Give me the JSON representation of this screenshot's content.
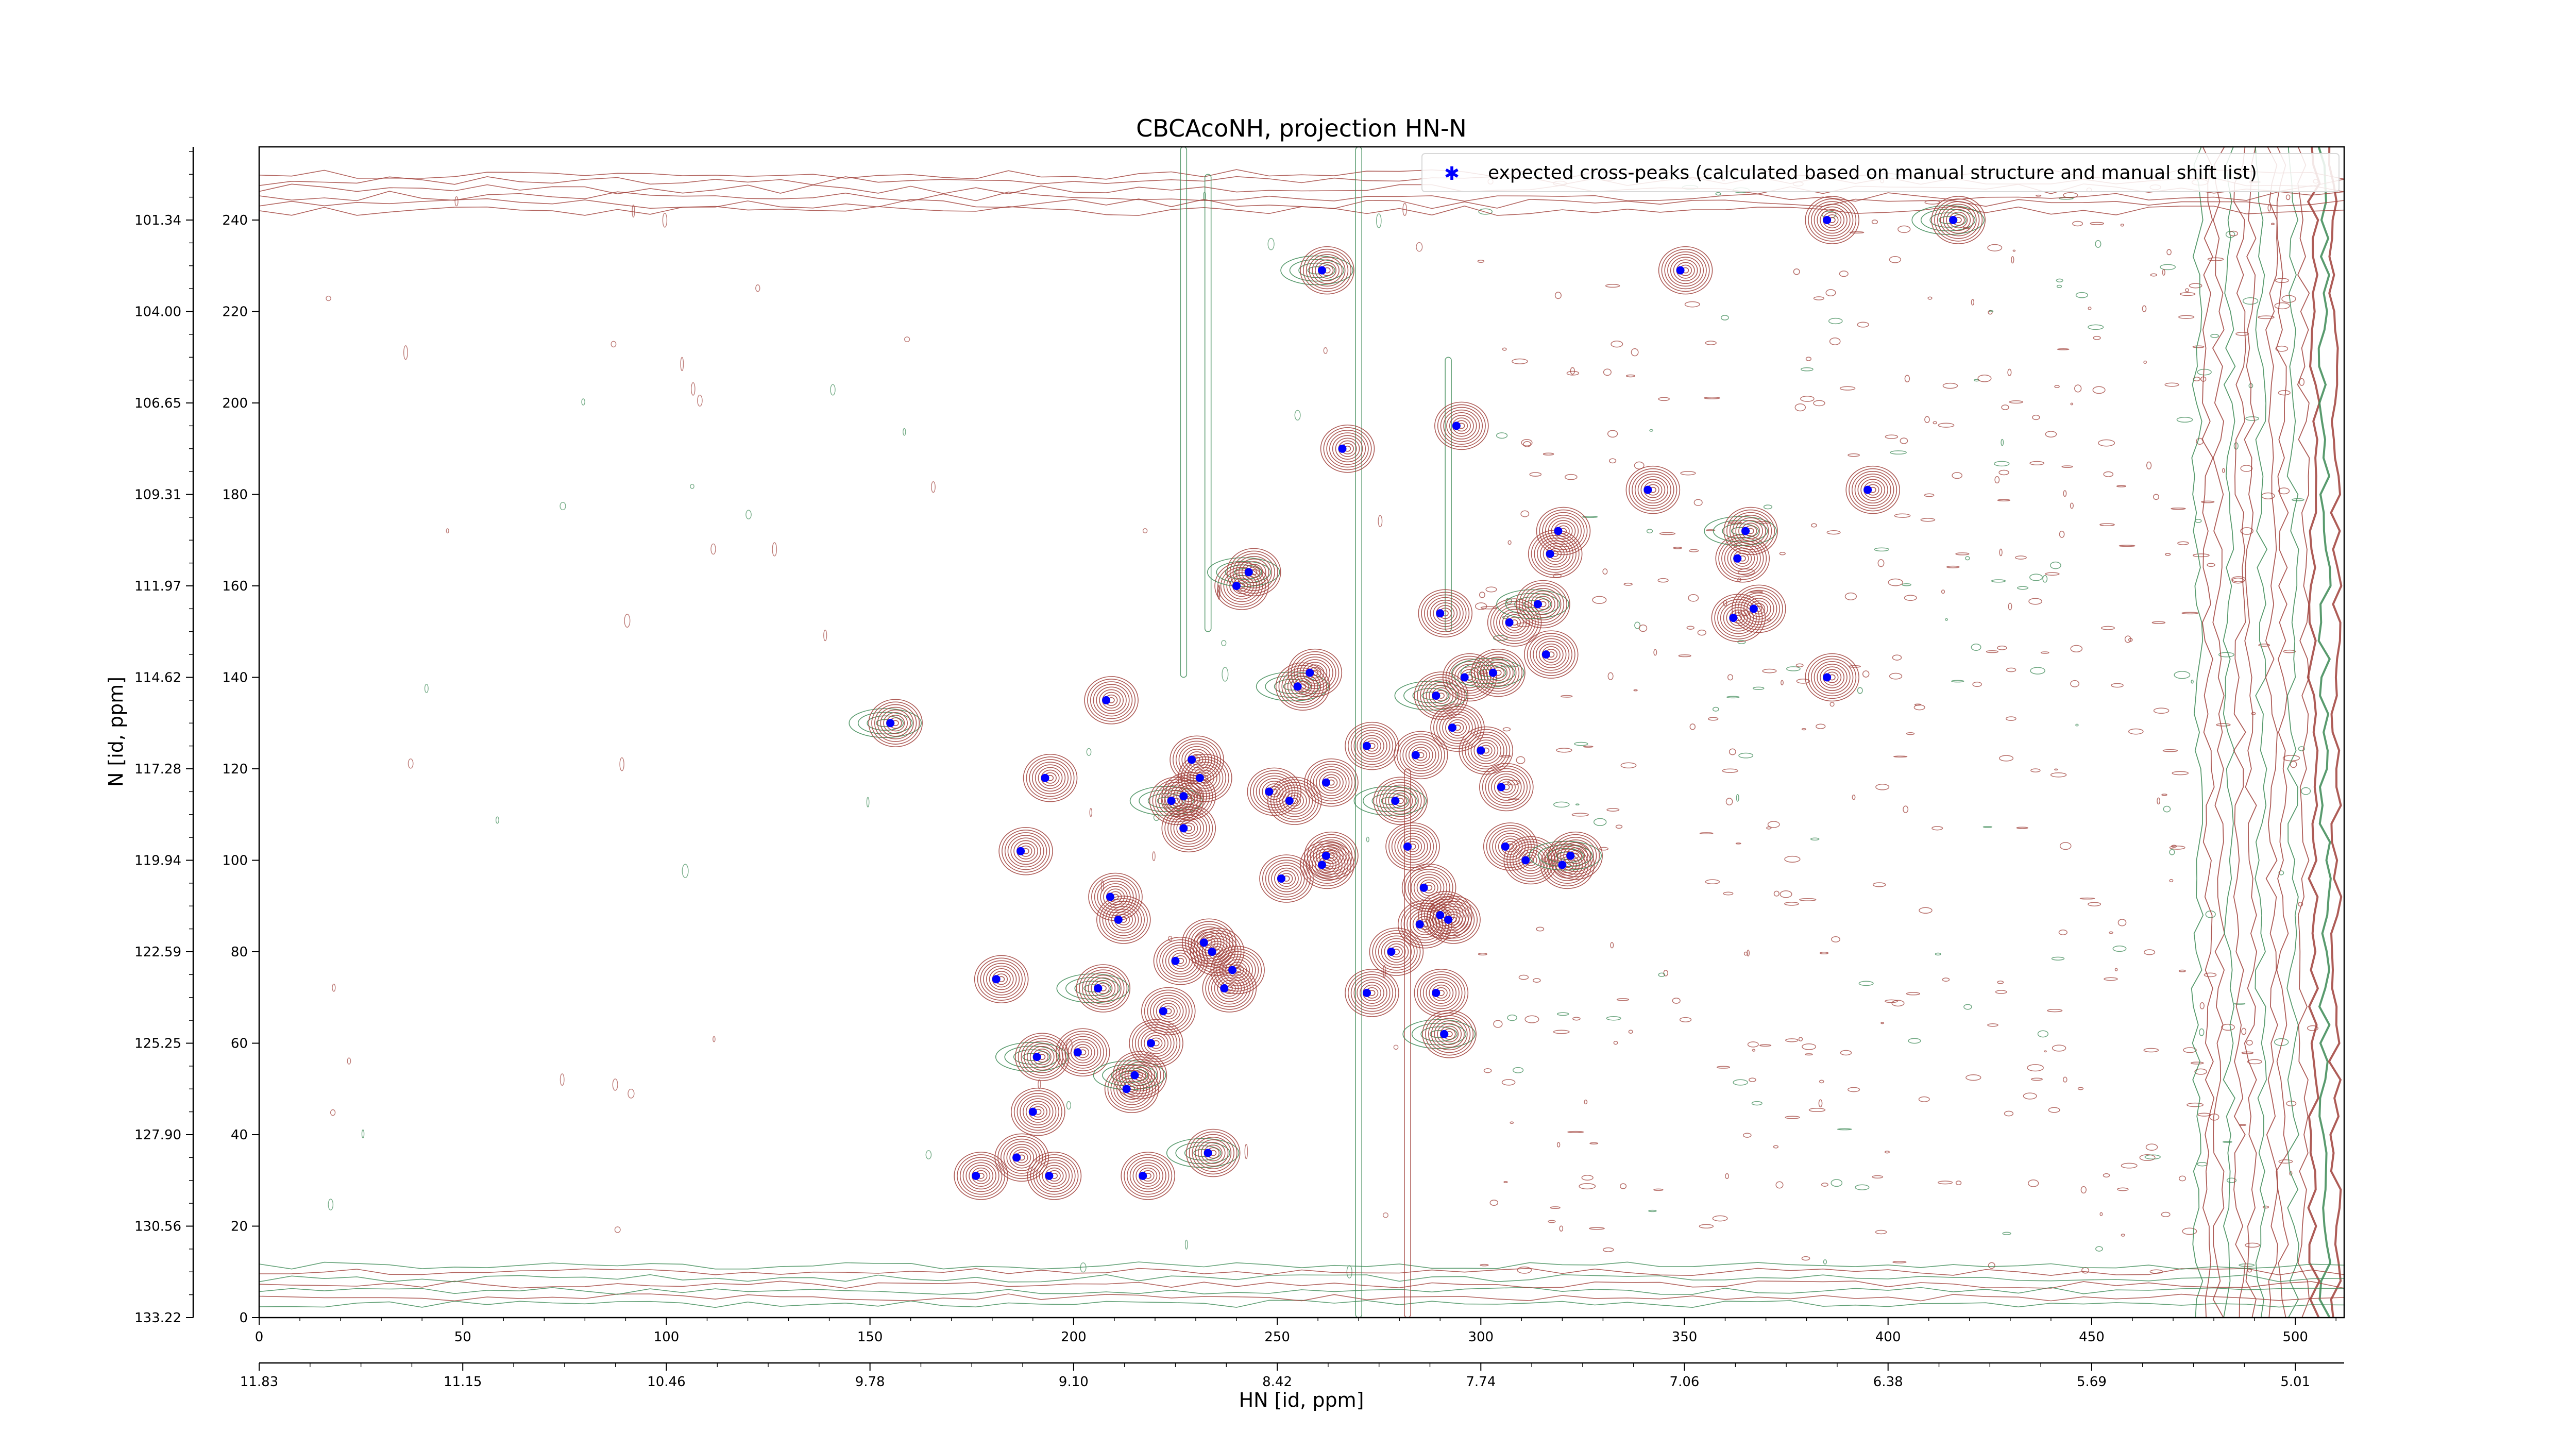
{
  "chart_data": {
    "type": "scatter",
    "title": "CBCAcoNH, projection HN-N",
    "xlabel": "HN [id, ppm]",
    "ylabel": "N [id, ppm]",
    "xlim": [
      0,
      512
    ],
    "ylim": [
      0,
      256
    ],
    "x_ticks": [
      0,
      50,
      100,
      150,
      200,
      250,
      300,
      350,
      400,
      450,
      500
    ],
    "y_ticks": [
      0,
      20,
      40,
      60,
      80,
      100,
      120,
      140,
      160,
      180,
      200,
      220,
      240
    ],
    "x_ppm_ticks": [
      "11.83",
      "11.15",
      "10.46",
      "9.78",
      "9.10",
      "8.42",
      "7.74",
      "7.06",
      "6.38",
      "5.69",
      "5.01"
    ],
    "y_ppm_ticks": [
      "133.22",
      "130.56",
      "127.90",
      "125.25",
      "122.59",
      "119.94",
      "117.28",
      "114.62",
      "111.97",
      "109.31",
      "106.65",
      "104.00",
      "101.34"
    ],
    "legend": {
      "placement": "top-right",
      "entries": [
        "expected cross-peaks (calculated based on manual structure and manual shift list)"
      ]
    },
    "colors": {
      "marker": "#0000ff",
      "positive_contour": "#a0403a",
      "negative_contour": "#3c8a55"
    },
    "series": [
      {
        "name": "expected cross-peaks (calculated based on manual structure and manual shift list)",
        "points": [
          [
            155,
            130
          ],
          [
            176,
            31
          ],
          [
            186,
            35
          ],
          [
            181,
            74
          ],
          [
            190,
            45
          ],
          [
            191,
            57
          ],
          [
            194,
            31
          ],
          [
            193,
            118
          ],
          [
            187,
            102
          ],
          [
            201,
            58
          ],
          [
            206,
            72
          ],
          [
            208,
            135
          ],
          [
            209,
            92
          ],
          [
            211,
            87
          ],
          [
            213,
            50
          ],
          [
            215,
            53
          ],
          [
            217,
            31
          ],
          [
            219,
            60
          ],
          [
            222,
            67
          ],
          [
            225,
            78
          ],
          [
            224,
            113
          ],
          [
            227,
            114
          ],
          [
            227,
            107
          ],
          [
            229,
            122
          ],
          [
            231,
            118
          ],
          [
            233,
            36
          ],
          [
            234,
            80
          ],
          [
            237,
            72
          ],
          [
            239,
            76
          ],
          [
            240,
            160
          ],
          [
            243,
            163
          ],
          [
            232,
            82
          ],
          [
            248,
            115
          ],
          [
            251,
            96
          ],
          [
            253,
            113
          ],
          [
            255,
            138
          ],
          [
            258,
            141
          ],
          [
            261,
            99
          ],
          [
            262,
            101
          ],
          [
            262,
            117
          ],
          [
            261,
            229
          ],
          [
            266,
            190
          ],
          [
            272,
            125
          ],
          [
            272,
            71
          ],
          [
            278,
            80
          ],
          [
            279,
            113
          ],
          [
            282,
            103
          ],
          [
            284,
            123
          ],
          [
            285,
            86
          ],
          [
            286,
            94
          ],
          [
            289,
            136
          ],
          [
            289,
            71
          ],
          [
            290,
            154
          ],
          [
            290,
            88
          ],
          [
            292,
            87
          ],
          [
            291,
            62
          ],
          [
            293,
            129
          ],
          [
            294,
            195
          ],
          [
            296,
            140
          ],
          [
            300,
            124
          ],
          [
            303,
            141
          ],
          [
            305,
            116
          ],
          [
            306,
            103
          ],
          [
            307,
            152
          ],
          [
            311,
            100
          ],
          [
            314,
            156
          ],
          [
            316,
            145
          ],
          [
            317,
            167
          ],
          [
            319,
            172
          ],
          [
            320,
            99
          ],
          [
            322,
            101
          ],
          [
            341,
            181
          ],
          [
            349,
            229
          ],
          [
            362,
            153
          ],
          [
            363,
            166
          ],
          [
            365,
            172
          ],
          [
            367,
            155
          ],
          [
            385,
            140
          ],
          [
            395,
            181
          ],
          [
            385,
            240
          ],
          [
            416,
            240
          ]
        ]
      }
    ]
  }
}
